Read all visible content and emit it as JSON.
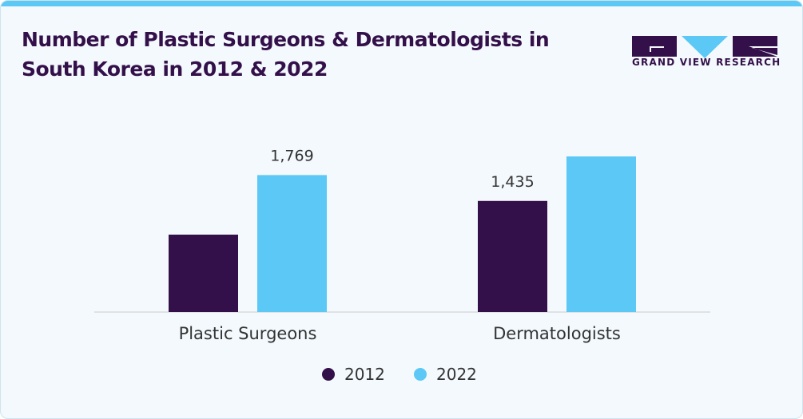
{
  "brand": {
    "name": "GRAND VIEW RESEARCH"
  },
  "colors": {
    "2012": "#34104a",
    "2022": "#5bc8f5"
  },
  "chart_data": {
    "type": "bar",
    "title": "Number of Plastic Surgeons & Dermatologists in South Korea in 2012 & 2022",
    "categories": [
      "Plastic Surgeons",
      "Dermatologists"
    ],
    "series": [
      {
        "name": "2012",
        "values": [
          1000,
          1435
        ]
      },
      {
        "name": "2022",
        "values": [
          1769,
          2010
        ]
      }
    ],
    "data_labels": [
      {
        "category": "Plastic Surgeons",
        "series": "2022",
        "text": "1,769"
      },
      {
        "category": "Dermatologists",
        "series": "2012",
        "text": "1,435"
      }
    ],
    "xlabel": "",
    "ylabel": "",
    "ylim": [
      0,
      2010
    ],
    "grid": false,
    "legend": "bottom-center"
  }
}
